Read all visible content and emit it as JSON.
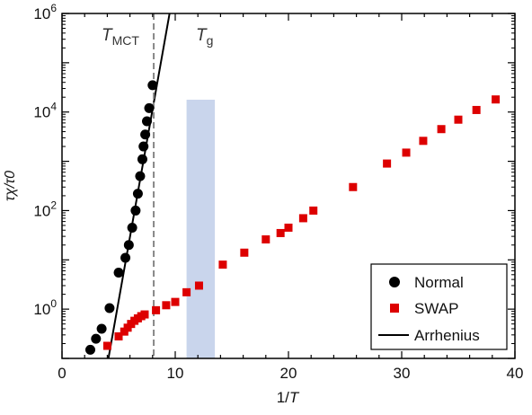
{
  "chart_data": {
    "type": "scatter",
    "xlabel_prefix": "1/",
    "xlabel_var": "T",
    "ylabel": "τχ/τ0",
    "xlim": [
      0,
      40
    ],
    "ylim_log10": [
      -1,
      6
    ],
    "yscale": "log",
    "x_ticks": [
      0,
      10,
      20,
      30,
      40
    ],
    "y_ticks": [
      {
        "base": "10",
        "exp": "0",
        "log10": 0
      },
      {
        "base": "10",
        "exp": "2",
        "log10": 2
      },
      {
        "base": "10",
        "exp": "4",
        "log10": 4
      },
      {
        "base": "10",
        "exp": "6",
        "log10": 6
      }
    ],
    "series": [
      {
        "name": "Normal",
        "marker": "circle",
        "color": "#000000",
        "points": [
          [
            2.5,
            0.15
          ],
          [
            3.0,
            0.25
          ],
          [
            3.5,
            0.4
          ],
          [
            4.2,
            1.05
          ],
          [
            5.0,
            5.5
          ],
          [
            5.6,
            11
          ],
          [
            5.9,
            20
          ],
          [
            6.2,
            45
          ],
          [
            6.5,
            100
          ],
          [
            6.7,
            220
          ],
          [
            6.9,
            500
          ],
          [
            7.1,
            1100
          ],
          [
            7.2,
            2000
          ],
          [
            7.35,
            3500
          ],
          [
            7.5,
            6500
          ],
          [
            7.7,
            12000
          ],
          [
            8.0,
            35000
          ]
        ]
      },
      {
        "name": "SWAP",
        "marker": "square",
        "color": "#dd0000",
        "points": [
          [
            4.0,
            0.18
          ],
          [
            5.0,
            0.28
          ],
          [
            5.5,
            0.35
          ],
          [
            5.8,
            0.42
          ],
          [
            6.1,
            0.5
          ],
          [
            6.4,
            0.58
          ],
          [
            6.7,
            0.65
          ],
          [
            7.0,
            0.72
          ],
          [
            7.3,
            0.78
          ],
          [
            8.3,
            0.95
          ],
          [
            9.2,
            1.2
          ],
          [
            10.0,
            1.4
          ],
          [
            11.0,
            2.2
          ],
          [
            12.1,
            3.0
          ],
          [
            14.2,
            8
          ],
          [
            16.1,
            14
          ],
          [
            18.0,
            26
          ],
          [
            19.3,
            35
          ],
          [
            20.0,
            45
          ],
          [
            21.3,
            70
          ],
          [
            22.2,
            100
          ],
          [
            25.7,
            300
          ],
          [
            28.7,
            900
          ],
          [
            30.4,
            1500
          ],
          [
            31.9,
            2600
          ],
          [
            33.5,
            4500
          ],
          [
            35.0,
            7000
          ],
          [
            36.6,
            11000
          ],
          [
            38.3,
            18000
          ]
        ]
      }
    ],
    "fit_line": {
      "name": "Arrhenius",
      "color": "#000000",
      "points": [
        [
          4.1,
          0.1
        ],
        [
          9.5,
          1000000
        ]
      ]
    },
    "vline": {
      "label_main": "T",
      "label_sub": "MCT",
      "x": 8.1,
      "style": "dashed",
      "color": "#888888"
    },
    "band": {
      "label_main": "T",
      "label_sub": "g",
      "x0": 11.0,
      "x1": 13.5,
      "y0_log10": -1,
      "y1_log10": 4.25,
      "color": "#c9d5ec"
    },
    "legend": {
      "position": "bottom-right"
    }
  }
}
